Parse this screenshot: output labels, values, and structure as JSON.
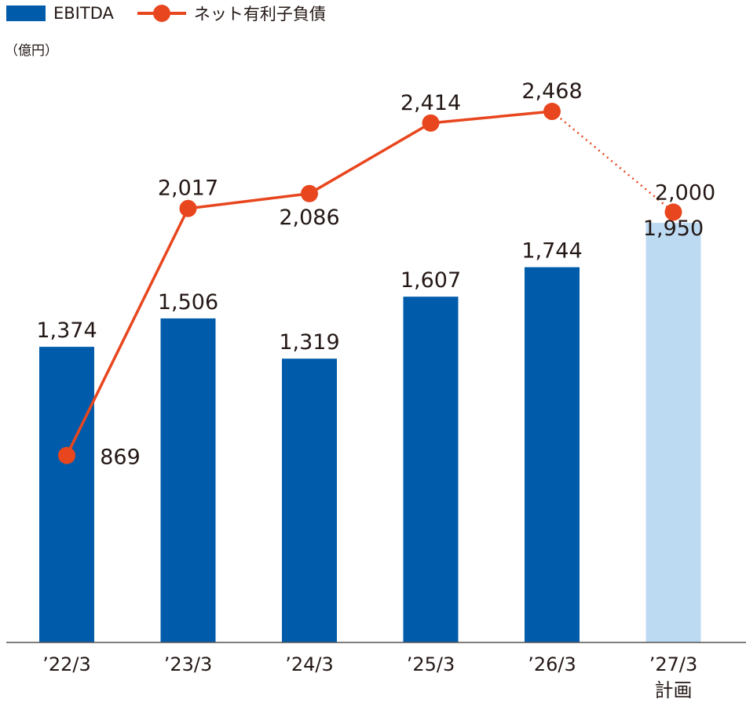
{
  "legend": {
    "bar_label": "EBITDA",
    "line_label": "ネット有利子負債"
  },
  "unit_label": "（億円）",
  "colors": {
    "bar": "#005bab",
    "bar_plan": "#bcdaf2",
    "line": "#e8461e",
    "axis": "#555555"
  },
  "chart_data": {
    "type": "bar",
    "categories": [
      "’22/3",
      "’23/3",
      "’24/3",
      "’25/3",
      "’26/3",
      "’27/3"
    ],
    "category_sublabels": [
      "",
      "",
      "",
      "",
      "",
      "計画"
    ],
    "series": [
      {
        "name": "EBITDA",
        "type": "bar",
        "values": [
          1374,
          1506,
          1319,
          1607,
          1744,
          1950
        ],
        "labels": [
          "1,374",
          "1,506",
          "1,319",
          "1,607",
          "1,744",
          "1,950"
        ],
        "plan_index": 5
      },
      {
        "name": "ネット有利子負債",
        "type": "line",
        "values": [
          869,
          2017,
          2086,
          2414,
          2468,
          2000
        ],
        "labels": [
          "869",
          "2,017",
          "2,086",
          "2,414",
          "2,468",
          "2,000"
        ],
        "dotted_last_segment": true
      }
    ],
    "ylim": [
      0,
      2700
    ],
    "grid": false,
    "legend_position": "top-left"
  }
}
